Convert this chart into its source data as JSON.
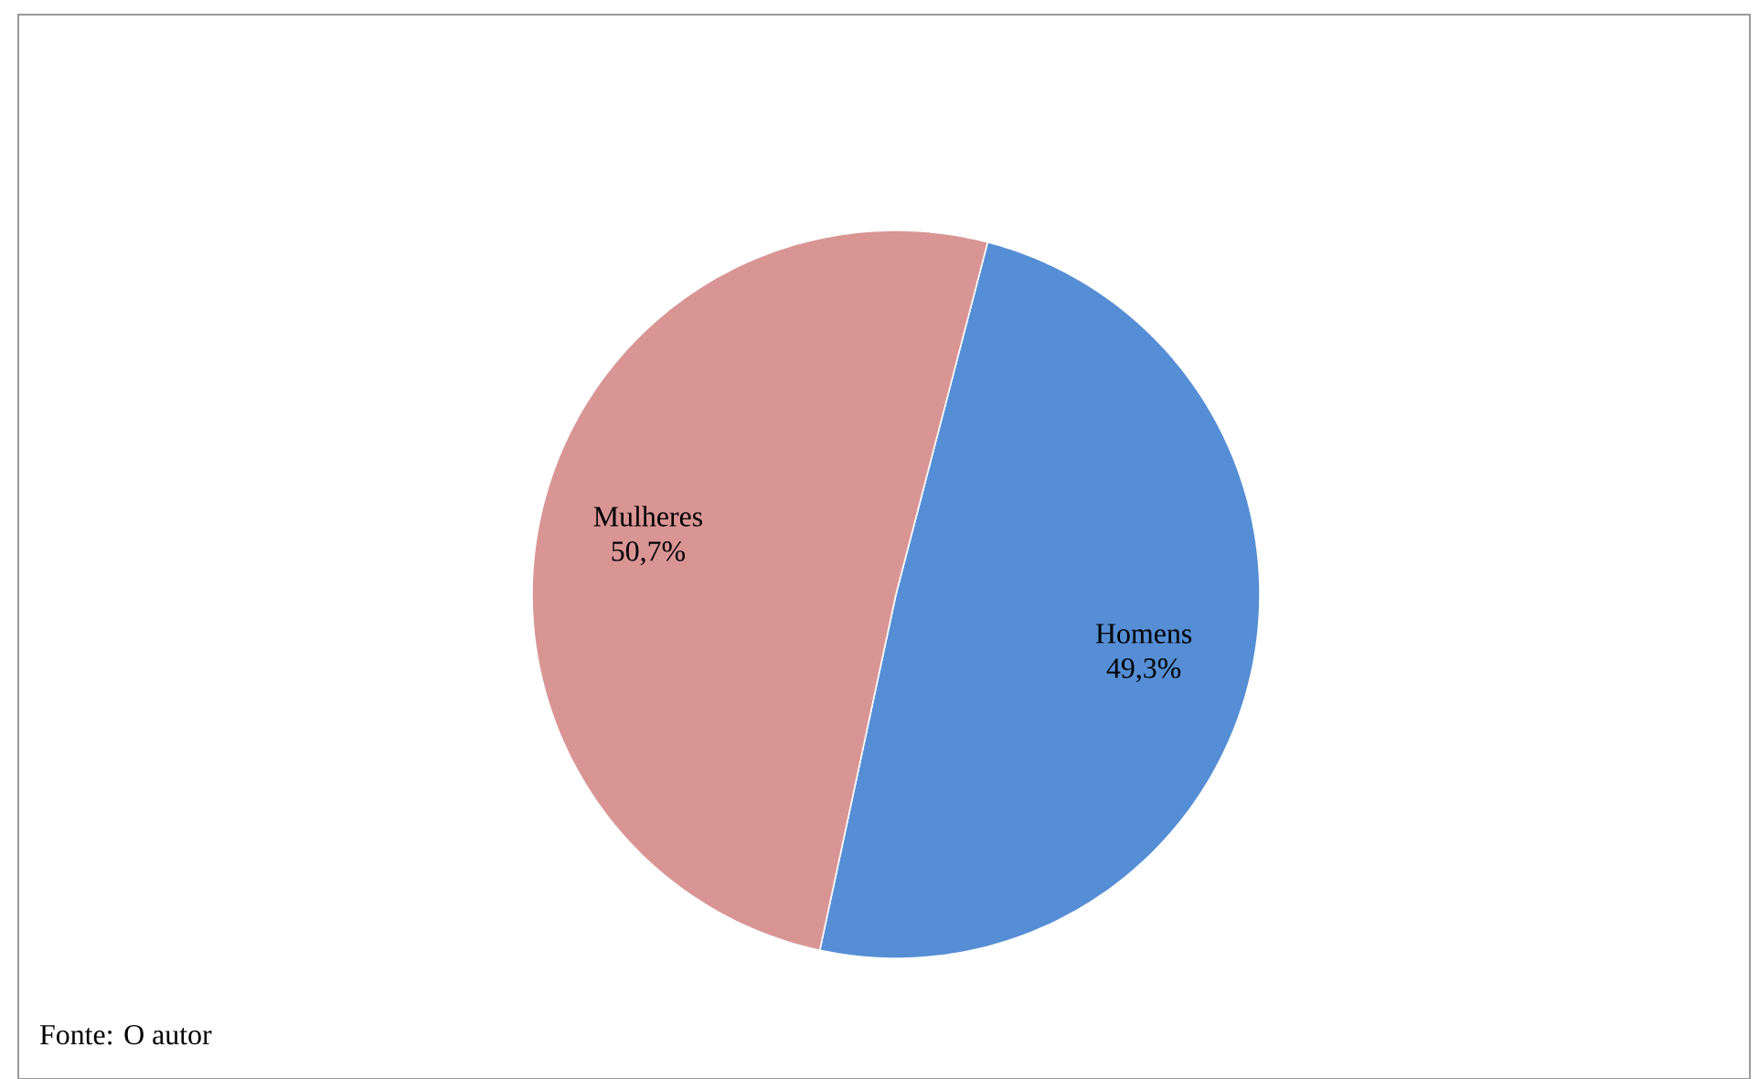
{
  "chart_data": {
    "type": "pie",
    "categories": [
      "Homens",
      "Mulheres"
    ],
    "values": [
      49.3,
      50.7
    ],
    "colors": [
      "#558ed5",
      "#d99594"
    ],
    "value_labels": [
      "49,3%",
      "50,7%"
    ],
    "annotations": [
      "Fonte: O autor"
    ]
  }
}
